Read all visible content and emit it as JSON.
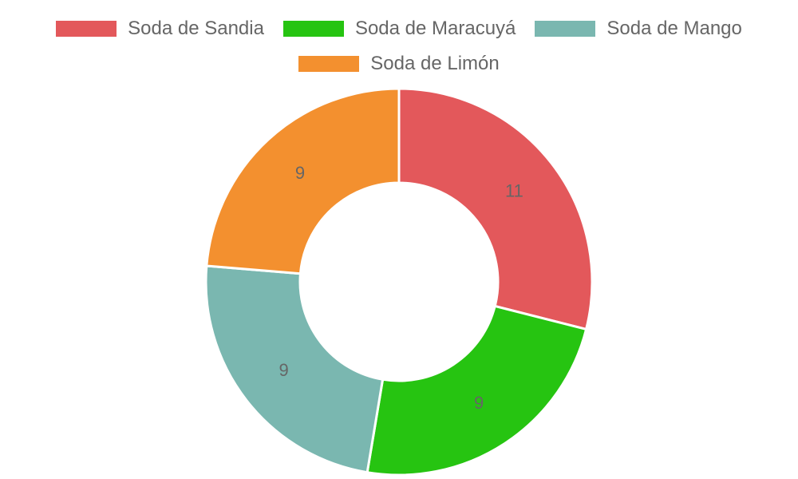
{
  "chart_data": {
    "type": "pie",
    "variant": "doughnut",
    "categories": [
      "Soda de Sandia",
      "Soda de Maracuyá",
      "Soda de Mango",
      "Soda de Limón"
    ],
    "values": [
      11,
      9,
      9,
      9
    ],
    "colors": [
      "#e3585b",
      "#26c411",
      "#7ab7b0",
      "#f3902f"
    ],
    "legend_position": "top",
    "show_value_labels": true
  }
}
